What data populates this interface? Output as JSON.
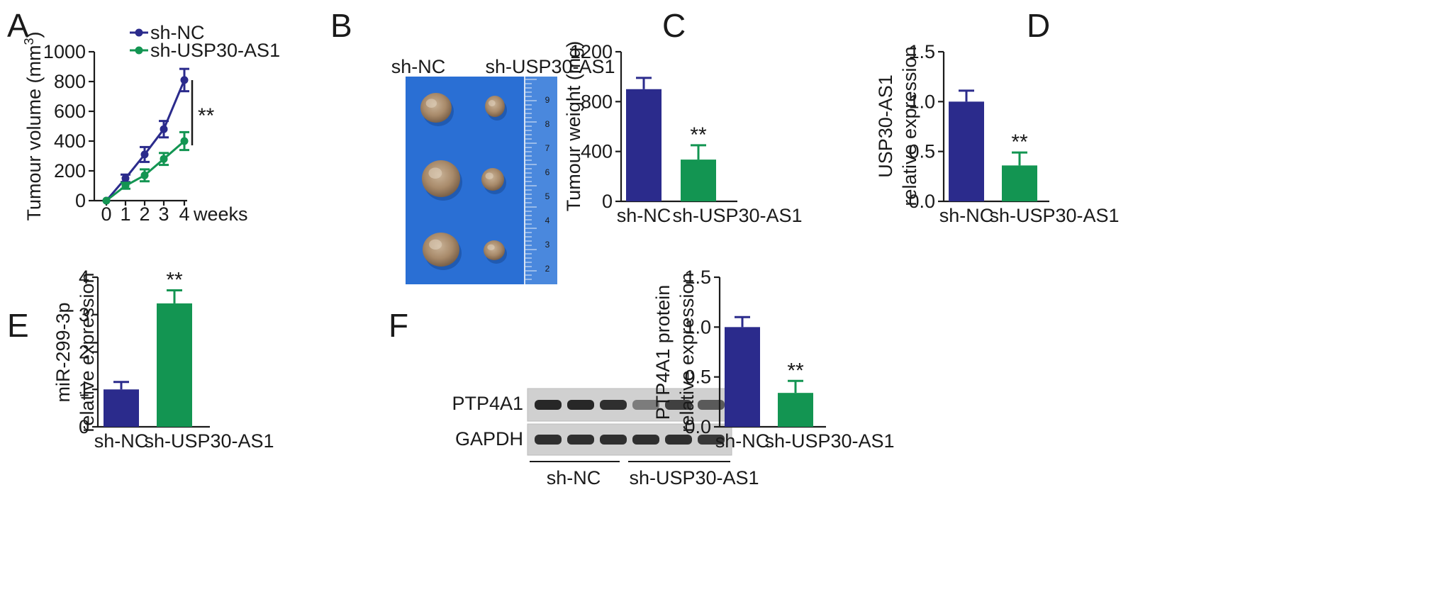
{
  "panel_letters": [
    "A",
    "B",
    "C",
    "D",
    "E",
    "F"
  ],
  "colors": {
    "sh_nc": "#2b2b8c",
    "sh_usp": "#139552",
    "axis": "#1a1a1a"
  },
  "photo": {
    "labels": [
      "sh-NC",
      "sh-USP30-AS1"
    ],
    "ruler_numbers": [
      "9",
      "8",
      "7",
      "6",
      "5",
      "4",
      "3",
      "2"
    ]
  },
  "blot": {
    "rows": [
      "PTP4A1",
      "GAPDH"
    ],
    "groups": [
      "sh-NC",
      "sh-USP30-AS1"
    ],
    "band_intensity": {
      "PTP4A1": [
        0.95,
        0.95,
        0.9,
        0.45,
        0.8,
        0.65
      ],
      "GAPDH": [
        0.9,
        0.9,
        0.9,
        0.9,
        0.9,
        0.85
      ]
    }
  },
  "chart_data": [
    {
      "panel": "A",
      "type": "line",
      "x": [
        0,
        1,
        2,
        3,
        4
      ],
      "x_ticks": [
        "0",
        "1",
        "2",
        "3",
        "4"
      ],
      "xlabel": "weeks",
      "ylabel": "Tumour volume (mm",
      "ylabel_sup": "3",
      "ylabel_close": ")",
      "ylim": [
        0,
        1000
      ],
      "y_ticks": [
        0,
        200,
        400,
        600,
        800,
        1000
      ],
      "series": [
        {
          "name": "sh-NC",
          "values": [
            0,
            150,
            310,
            480,
            810
          ],
          "errors": [
            0,
            25,
            50,
            55,
            75
          ]
        },
        {
          "name": "sh-USP30-AS1",
          "values": [
            0,
            100,
            170,
            280,
            400
          ],
          "errors": [
            0,
            20,
            40,
            40,
            60
          ]
        }
      ],
      "significance": "**"
    },
    {
      "panel": "C",
      "type": "bar",
      "categories": [
        "sh-NC",
        "sh-USP30-AS1"
      ],
      "values": [
        900,
        335
      ],
      "errors": [
        90,
        115
      ],
      "ylabel": "Tumour weight (mg)",
      "ylim": [
        0,
        1200
      ],
      "y_ticks": [
        "0",
        "400",
        "800",
        "1200"
      ],
      "significance": [
        "",
        "**"
      ]
    },
    {
      "panel": "D",
      "type": "bar",
      "categories": [
        "sh-NC",
        "sh-USP30-AS1"
      ],
      "values": [
        1.0,
        0.36
      ],
      "errors": [
        0.11,
        0.13
      ],
      "ylabel": [
        "USP30-AS1",
        "relative expression"
      ],
      "ylim": [
        0,
        1.5
      ],
      "y_ticks": [
        "0.0",
        "0.5",
        "1.0",
        "1.5"
      ],
      "significance": [
        "",
        "**"
      ]
    },
    {
      "panel": "E",
      "type": "bar",
      "categories": [
        "sh-NC",
        "sh-USP30-AS1"
      ],
      "values": [
        1.0,
        3.3
      ],
      "errors": [
        0.2,
        0.35
      ],
      "ylabel": [
        "miR-299-3p",
        "relative expression"
      ],
      "ylim": [
        0,
        4
      ],
      "y_ticks": [
        "0",
        "1",
        "2",
        "3",
        "4"
      ],
      "significance": [
        "",
        "**"
      ]
    },
    {
      "panel": "F",
      "type": "bar",
      "categories": [
        "sh-NC",
        "sh-USP30-AS1"
      ],
      "values": [
        1.0,
        0.34
      ],
      "errors": [
        0.1,
        0.12
      ],
      "ylabel": [
        "PTP4A1 protein",
        "relative expression"
      ],
      "ylim": [
        0,
        1.5
      ],
      "y_ticks": [
        "0.0",
        "0.5",
        "1.0",
        "1.5"
      ],
      "significance": [
        "",
        "**"
      ]
    }
  ]
}
